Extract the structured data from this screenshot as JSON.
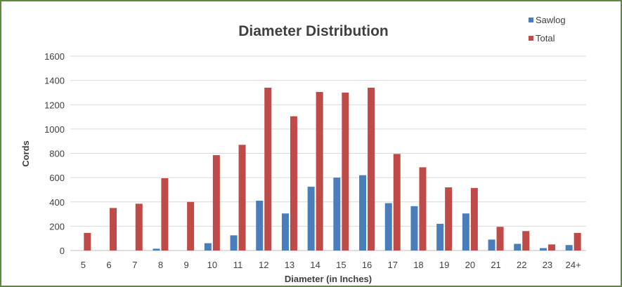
{
  "chart_data": {
    "type": "bar",
    "title": "Diameter Distribution",
    "xlabel": "Diameter (in Inches)",
    "ylabel": "Cords",
    "ylim": [
      0,
      1600
    ],
    "yticks": [
      0,
      200,
      400,
      600,
      800,
      1000,
      1200,
      1400,
      1600
    ],
    "grid": true,
    "legend": "top-right",
    "categories": [
      "5",
      "6",
      "7",
      "8",
      "9",
      "10",
      "11",
      "12",
      "13",
      "14",
      "15",
      "16",
      "17",
      "18",
      "19",
      "20",
      "21",
      "22",
      "23",
      "24+"
    ],
    "series": [
      {
        "name": "Sawlog",
        "color": "#4a7ebb",
        "values": [
          0,
          0,
          0,
          15,
          0,
          60,
          125,
          410,
          305,
          525,
          600,
          620,
          390,
          365,
          220,
          305,
          90,
          55,
          20,
          45
        ]
      },
      {
        "name": "Total",
        "color": "#be4b48",
        "values": [
          145,
          350,
          385,
          595,
          400,
          785,
          870,
          1340,
          1105,
          1305,
          1300,
          1340,
          795,
          685,
          520,
          515,
          195,
          160,
          50,
          145
        ]
      }
    ]
  }
}
